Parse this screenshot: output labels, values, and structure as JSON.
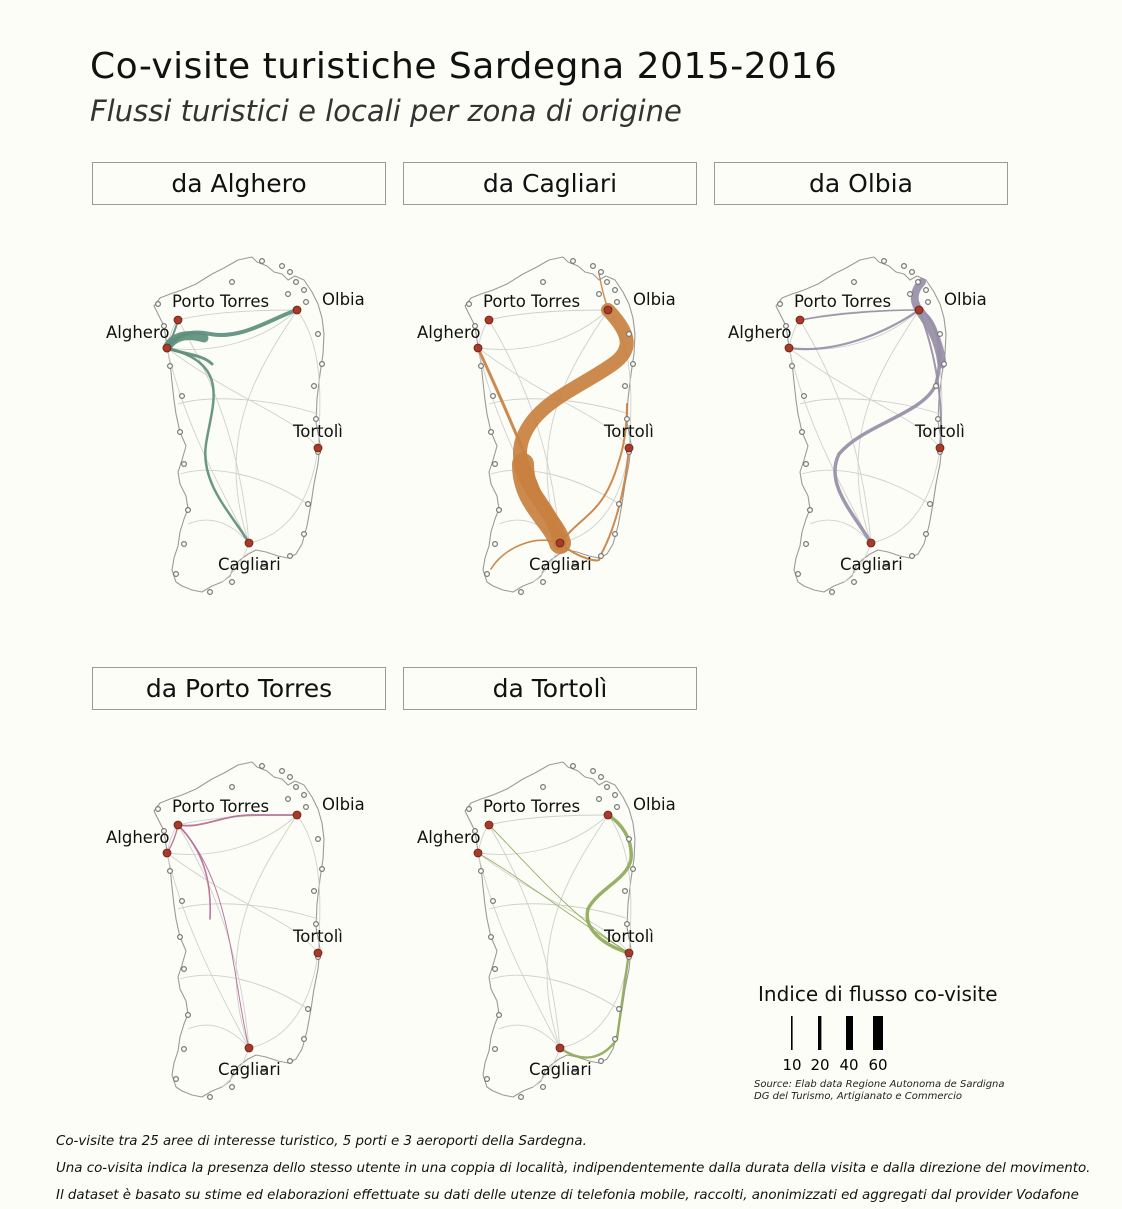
{
  "title": "Co-visite turistiche Sardegna 2015-2016",
  "subtitle": "Flussi turistici e locali per zona di origine",
  "places": {
    "porto_torres": "Porto Torres",
    "olbia": "Olbia",
    "alghero": "Alghero",
    "tortoli": "Tortolì",
    "cagliari": "Cagliari"
  },
  "panels": [
    {
      "id": "alghero",
      "label": "da Alghero",
      "color": "#5e8f7c"
    },
    {
      "id": "cagliari",
      "label": "da Cagliari",
      "color": "#c8803f"
    },
    {
      "id": "olbia",
      "label": "da Olbia",
      "color": "#978ea7"
    },
    {
      "id": "porto_torres",
      "label": "da Porto Torres",
      "color": "#b46d95"
    },
    {
      "id": "tortoli",
      "label": "da Tortolì",
      "color": "#8faa5a"
    }
  ],
  "colors": {
    "background": "#fdfdf7",
    "marker": "#a83a2a",
    "coast": "#9a9a9a",
    "base_route": "#cfcfcf"
  },
  "legend": {
    "title": "Indice di flusso co-visite",
    "items": [
      {
        "label": "10",
        "value": 10
      },
      {
        "label": "20",
        "value": 20
      },
      {
        "label": "40",
        "value": 40
      },
      {
        "label": "60",
        "value": 60
      }
    ]
  },
  "source": {
    "line1": "Source: Elab data Regione Autonoma de Sardigna",
    "line2": "DG del Turismo, Artigianato e Commercio"
  },
  "notes": [
    "Co-visite tra 25 aree di interesse turistico, 5 porti e 3 aeroporti della Sardegna.",
    "Una co-visita indica la presenza dello stesso utente in una coppia di località, indipendentemente dalla durata della visita e dalla direzione del movimento.",
    "Il dataset è basato su stime ed elaborazioni effettuate su dati delle utenze di telefonia mobile, raccolti, anonimizzati ed aggregati dal provider Vodafone"
  ]
}
